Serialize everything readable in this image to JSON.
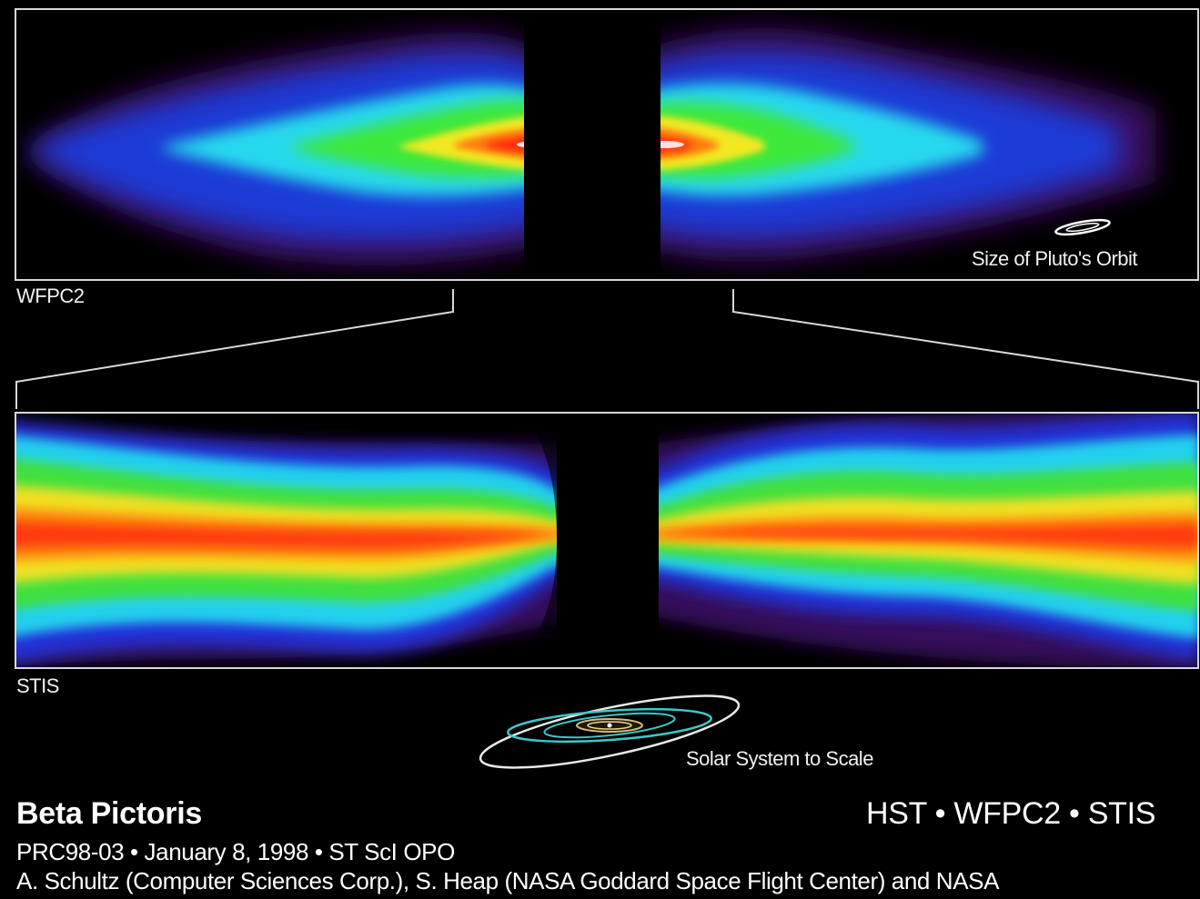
{
  "panels": {
    "top_label": "WFPC2",
    "bottom_label": "STIS"
  },
  "scale_labels": {
    "pluto_orbit": "Size of Pluto's Orbit",
    "solar_system": "Solar System to Scale"
  },
  "footer": {
    "title": "Beta Pictoris",
    "instruments": "HST • WFPC2 • STIS",
    "release_line": "PRC98-03 • January 8, 1998 • ST ScI OPO",
    "credit_line": "A. Schultz (Computer Sciences Corp.), S. Heap (NASA Goddard Space Flight Center) and NASA"
  },
  "colors": {
    "background": "#000000",
    "frame": "#d8d8d8",
    "text": "#ffffff"
  }
}
